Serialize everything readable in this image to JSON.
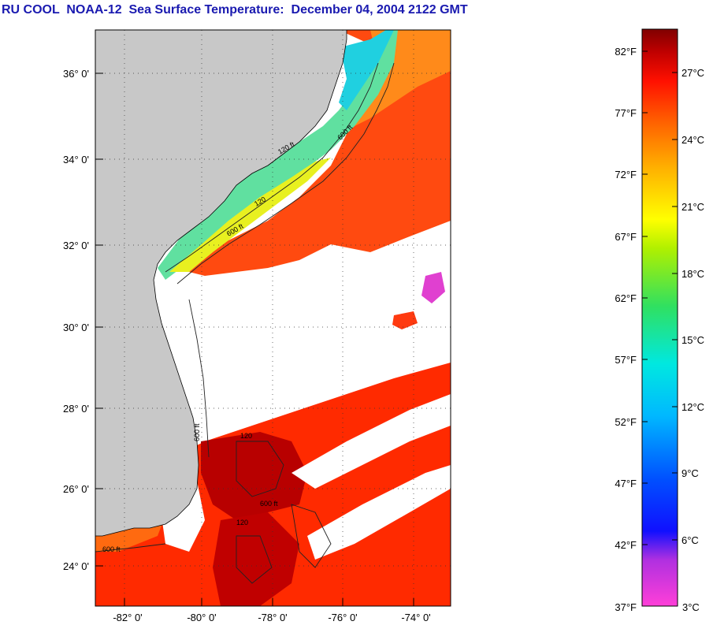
{
  "title": "RU COOL  NOAA-12  Sea Surface Temperature:  December 04, 2004 2122 GMT",
  "map": {
    "lat_labels": [
      "36° 0'",
      "34° 0'",
      "32° 0'",
      "30° 0'",
      "28° 0'",
      "26° 0'",
      "24° 0'"
    ],
    "lon_labels": [
      "-82° 0'",
      "-80° 0'",
      "-78° 0'",
      "-76° 0'",
      "-74° 0'"
    ],
    "contour_labels": [
      "120 ft",
      "600 ft",
      "120",
      "600 ft",
      "600 ft",
      "120",
      "600 ft",
      "120",
      "600 ft"
    ],
    "colors": {
      "land": "#c8c8c8",
      "cloud": "#ffffff",
      "warm": "#ff2a00",
      "dark_warm": "#b80000",
      "cool": "#00d8e8"
    }
  },
  "colorbar": {
    "f_labels": [
      "82°F",
      "77°F",
      "72°F",
      "67°F",
      "62°F",
      "57°F",
      "52°F",
      "47°F",
      "42°F",
      "37°F"
    ],
    "c_labels": [
      "27°C",
      "24°C",
      "21°C",
      "18°C",
      "15°C",
      "12°C",
      "9°C",
      "6°C",
      "3°C"
    ]
  }
}
